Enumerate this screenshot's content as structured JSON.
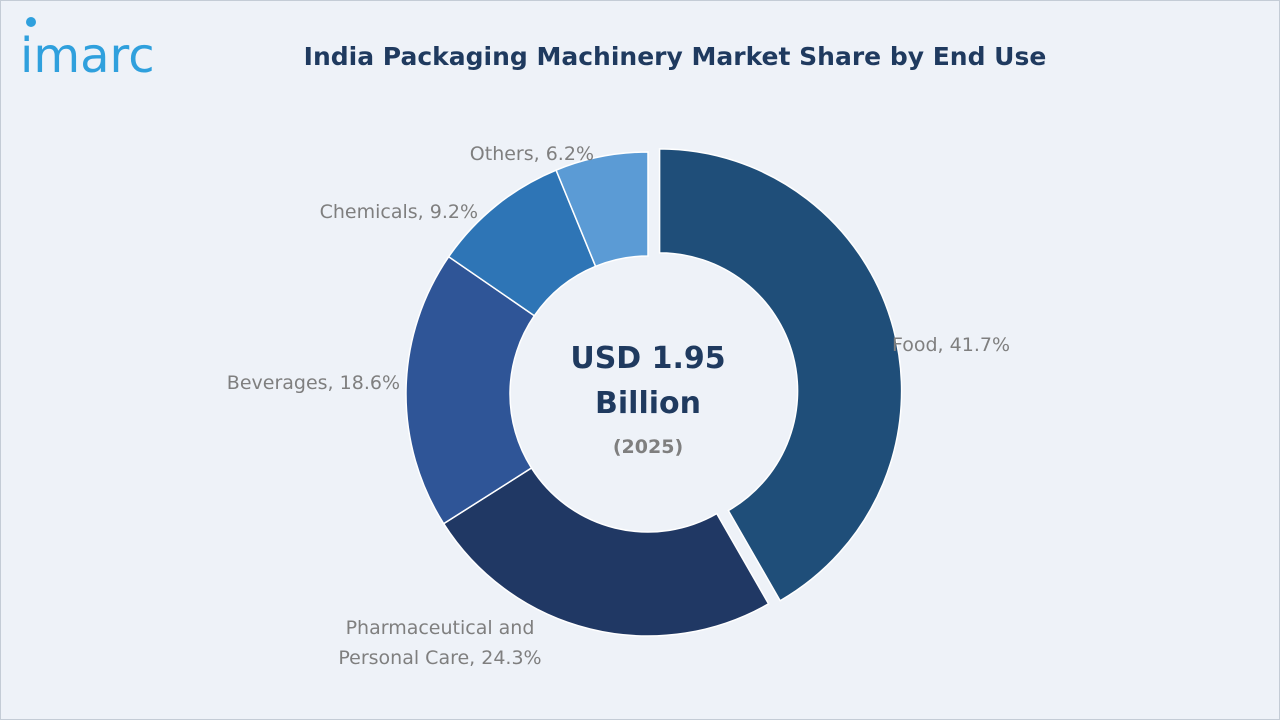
{
  "brand": {
    "logo_text": "imarc",
    "logo_color": "#2fa0dd"
  },
  "chart_data": {
    "type": "pie",
    "variant": "donut",
    "title": "India Packaging Machinery Market Share by End Use",
    "center_text": {
      "line1": "USD 1.95",
      "line2": "Billion",
      "line3": "(2025)"
    },
    "slices": [
      {
        "label": "Food",
        "value": 41.7,
        "label_text": "Food, 41.7%",
        "color": "#1f4e79",
        "exploded": true
      },
      {
        "label": "Pharmaceutical and Personal Care",
        "value": 24.3,
        "label_lines": [
          "Pharmaceutical and",
          "Personal Care, 24.3%"
        ],
        "color": "#203864"
      },
      {
        "label": "Beverages",
        "value": 18.6,
        "label_text": "Beverages, 18.6%",
        "color": "#2f5597"
      },
      {
        "label": "Chemicals",
        "value": 9.2,
        "label_text": "Chemicals, 9.2%",
        "color": "#2e75b6"
      },
      {
        "label": "Others",
        "value": 6.2,
        "label_text": "Others, 6.2%",
        "color": "#5b9bd5"
      }
    ]
  }
}
